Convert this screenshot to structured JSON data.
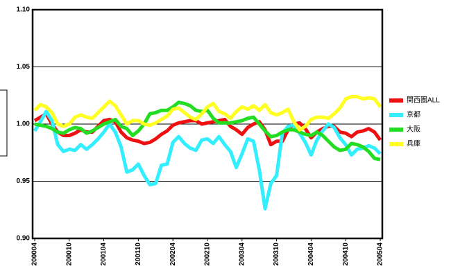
{
  "chart_data": {
    "type": "line",
    "categories": [
      "200004",
      null,
      null,
      null,
      null,
      null,
      "200010",
      null,
      null,
      null,
      null,
      null,
      "200104",
      null,
      null,
      null,
      null,
      null,
      "200110",
      null,
      null,
      null,
      null,
      null,
      "200204",
      null,
      null,
      null,
      null,
      null,
      "200210",
      null,
      null,
      null,
      null,
      null,
      "200304",
      null,
      null,
      null,
      null,
      null,
      "200310",
      null,
      null,
      null,
      null,
      null,
      "200404",
      null,
      null,
      null,
      null,
      null,
      "200410",
      null,
      null,
      null,
      null,
      null,
      "200504"
    ],
    "series": [
      {
        "name": "関西圏ALL",
        "color": "#ee1111",
        "values": [
          1.003,
          1.006,
          1.009,
          1.0,
          0.993,
          0.99,
          0.99,
          0.992,
          0.995,
          0.993,
          0.993,
          0.998,
          1.003,
          1.004,
          1.002,
          0.993,
          0.988,
          0.986,
          0.985,
          0.983,
          0.984,
          0.987,
          0.991,
          0.994,
          0.999,
          1.001,
          1.002,
          1.003,
          1.003,
          1.0,
          1.001,
          1.002,
          1.003,
          1.004,
          0.998,
          0.995,
          0.991,
          0.997,
          1.0,
          1.002,
          0.995,
          0.982,
          0.985,
          0.985,
          0.995,
          1.0,
          1.001,
          0.996,
          0.988,
          0.993,
          0.996,
          0.998,
          0.998,
          0.993,
          0.992,
          0.989,
          0.993,
          0.994,
          0.996,
          0.993,
          0.986
        ]
      },
      {
        "name": "京都",
        "color": "#33eeff",
        "values": [
          0.994,
          1.002,
          1.011,
          1.003,
          0.982,
          0.976,
          0.978,
          0.977,
          0.982,
          0.978,
          0.982,
          0.987,
          0.993,
          1.0,
          0.993,
          0.98,
          0.958,
          0.96,
          0.965,
          0.955,
          0.947,
          0.948,
          0.964,
          0.965,
          0.984,
          0.989,
          0.983,
          0.979,
          0.977,
          0.986,
          0.987,
          0.983,
          0.989,
          0.982,
          0.976,
          0.962,
          0.974,
          0.987,
          0.985,
          0.96,
          0.926,
          0.948,
          0.955,
          0.992,
          0.998,
          0.999,
          0.992,
          0.984,
          0.973,
          0.986,
          0.994,
          1.0,
          0.997,
          0.988,
          0.982,
          0.973,
          0.978,
          0.979,
          0.981,
          0.979,
          0.974
        ]
      },
      {
        "name": "大阪",
        "color": "#22dd22",
        "values": [
          1.0,
          0.999,
          0.998,
          0.996,
          0.993,
          0.992,
          0.995,
          0.997,
          0.996,
          0.992,
          0.994,
          0.997,
          1.0,
          1.002,
          1.004,
          0.998,
          0.996,
          0.99,
          0.994,
          1.0,
          1.009,
          1.01,
          1.012,
          1.012,
          1.015,
          1.019,
          1.018,
          1.016,
          1.012,
          1.011,
          1.012,
          1.005,
          1.001,
          1.001,
          1.001,
          1.002,
          1.003,
          1.005,
          1.006,
          1.0,
          0.994,
          0.989,
          0.99,
          0.993,
          0.995,
          0.995,
          0.993,
          0.991,
          0.99,
          0.993,
          0.99,
          0.985,
          0.98,
          0.977,
          0.978,
          0.983,
          0.982,
          0.98,
          0.976,
          0.97,
          0.969
        ]
      },
      {
        "name": "兵庫",
        "color": "#ffff22",
        "values": [
          1.012,
          1.017,
          1.015,
          1.01,
          1.0,
          0.998,
          1.0,
          1.006,
          1.008,
          1.006,
          1.005,
          1.01,
          1.015,
          1.02,
          1.016,
          1.008,
          1.0,
          1.003,
          1.003,
          1.0,
          0.999,
          1.001,
          1.004,
          1.007,
          1.013,
          1.014,
          1.01,
          1.006,
          1.004,
          1.009,
          1.015,
          1.018,
          1.011,
          1.009,
          1.005,
          1.011,
          1.015,
          1.013,
          1.016,
          1.012,
          1.017,
          1.01,
          1.008,
          1.01,
          1.013,
          1.002,
          0.995,
          0.998,
          1.004,
          1.006,
          1.006,
          1.005,
          1.009,
          1.014,
          1.022,
          1.024,
          1.024,
          1.022,
          1.023,
          1.022,
          1.015
        ]
      }
    ],
    "ylim": [
      0.9,
      1.1
    ],
    "yticks": [
      {
        "value": 0.9,
        "label": "0.90"
      },
      0.95,
      {
        "value": 1.0,
        "label": "1.00"
      },
      1.05,
      {
        "value": 1.1,
        "label": "1.10"
      }
    ],
    "grid": true
  }
}
